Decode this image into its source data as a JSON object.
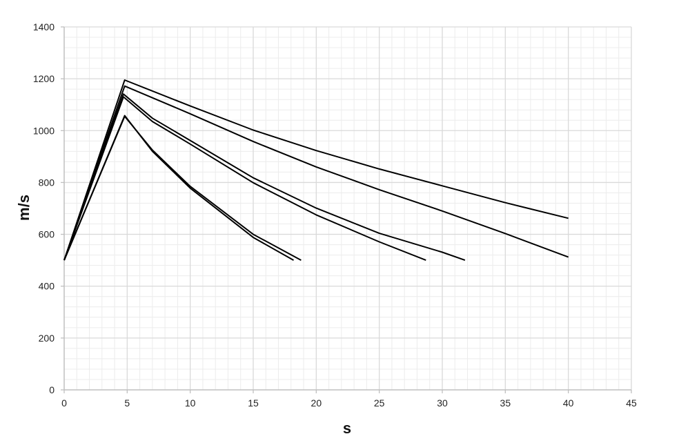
{
  "chart_data": {
    "type": "line",
    "title": "",
    "xlabel": "s",
    "ylabel": "m/s",
    "xlim": [
      0,
      45
    ],
    "ylim": [
      0,
      1400
    ],
    "x_ticks": [
      "0",
      "5",
      "10",
      "15",
      "20",
      "25",
      "30",
      "35",
      "40",
      "45"
    ],
    "y_ticks": [
      "0",
      "200",
      "400",
      "600",
      "800",
      "1000",
      "1200",
      "1400"
    ],
    "grid": true,
    "legend": "none",
    "colors": {
      "line": "#000000",
      "grid_major": "#d9d9d9",
      "grid_minor": "#ececec",
      "axis": "#bfbfbf"
    },
    "series": [
      {
        "x": [
          0,
          4.8,
          10,
          15,
          20,
          25,
          30,
          35,
          40
        ],
        "y": [
          500,
          1195,
          1095,
          1002,
          923,
          852,
          787,
          722,
          662
        ]
      },
      {
        "x": [
          0,
          4.8,
          10,
          15,
          20,
          25,
          30,
          35,
          40
        ],
        "y": [
          500,
          1172,
          1065,
          958,
          860,
          772,
          690,
          603,
          512
        ]
      },
      {
        "x": [
          0,
          4.7,
          7,
          10,
          15,
          20,
          25,
          30,
          31.8
        ],
        "y": [
          500,
          1141,
          1048,
          962,
          818,
          701,
          604,
          531,
          500
        ]
      },
      {
        "x": [
          0,
          4.7,
          7,
          10,
          15,
          20,
          25,
          28.7
        ],
        "y": [
          500,
          1130,
          1035,
          948,
          799,
          675,
          571,
          500
        ]
      },
      {
        "x": [
          0,
          4.8,
          7,
          10,
          15,
          18.8
        ],
        "y": [
          500,
          1055,
          925,
          785,
          600,
          500
        ]
      },
      {
        "x": [
          0,
          4.8,
          7,
          10,
          15,
          18.2
        ],
        "y": [
          500,
          1058,
          920,
          778,
          588,
          500
        ]
      }
    ]
  }
}
